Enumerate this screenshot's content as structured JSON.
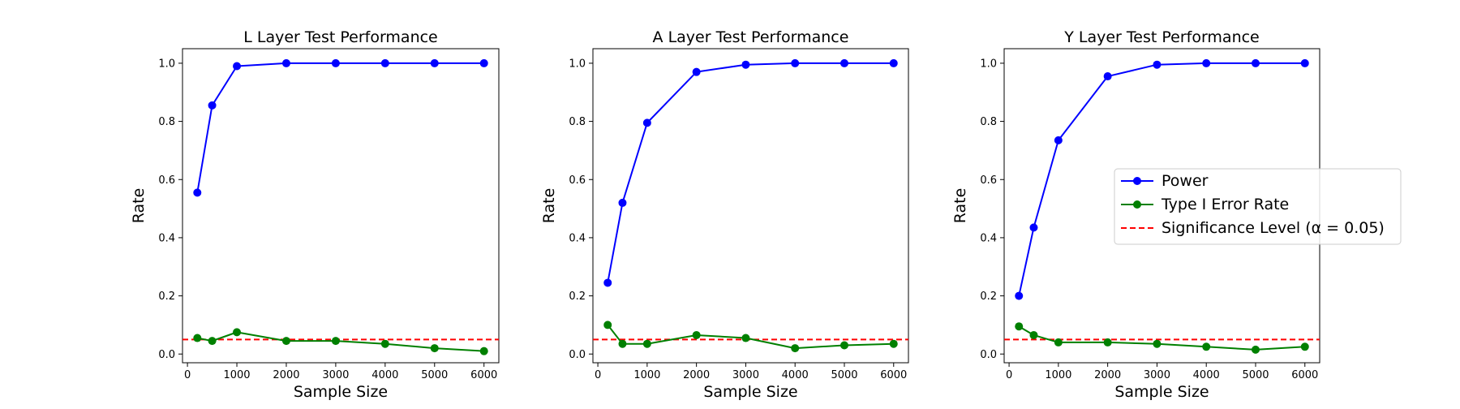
{
  "chart_data": [
    {
      "type": "line",
      "title": "L Layer Test Performance",
      "xlabel": "Sample Size",
      "ylabel": "Rate",
      "x": [
        200,
        500,
        1000,
        2000,
        3000,
        4000,
        5000,
        6000
      ],
      "xticks": [
        "0",
        "1000",
        "2000",
        "3000",
        "4000",
        "5000",
        "6000"
      ],
      "yticks": [
        "0.0",
        "0.2",
        "0.4",
        "0.6",
        "0.8",
        "1.0"
      ],
      "xlim": [
        -100,
        6300
      ],
      "ylim": [
        -0.03,
        1.05
      ],
      "series": [
        {
          "name": "Power",
          "color": "#0000ff",
          "values": [
            0.555,
            0.855,
            0.99,
            1.0,
            1.0,
            1.0,
            1.0,
            1.0
          ]
        },
        {
          "name": "Type I Error Rate",
          "color": "#008000",
          "values": [
            0.055,
            0.045,
            0.075,
            0.045,
            0.045,
            0.035,
            0.02,
            0.01
          ]
        }
      ],
      "hline": {
        "name": "Significance Level (α = 0.05)",
        "value": 0.05,
        "color": "#ff0000",
        "style": "dashed"
      },
      "grid": false
    },
    {
      "type": "line",
      "title": "A Layer Test Performance",
      "xlabel": "Sample Size",
      "ylabel": "Rate",
      "x": [
        200,
        500,
        1000,
        2000,
        3000,
        4000,
        5000,
        6000
      ],
      "xticks": [
        "0",
        "1000",
        "2000",
        "3000",
        "4000",
        "5000",
        "6000"
      ],
      "yticks": [
        "0.0",
        "0.2",
        "0.4",
        "0.6",
        "0.8",
        "1.0"
      ],
      "xlim": [
        -100,
        6300
      ],
      "ylim": [
        -0.03,
        1.05
      ],
      "series": [
        {
          "name": "Power",
          "color": "#0000ff",
          "values": [
            0.245,
            0.52,
            0.795,
            0.97,
            0.995,
            1.0,
            1.0,
            1.0
          ]
        },
        {
          "name": "Type I Error Rate",
          "color": "#008000",
          "values": [
            0.1,
            0.035,
            0.035,
            0.065,
            0.055,
            0.02,
            0.03,
            0.035
          ]
        }
      ],
      "hline": {
        "name": "Significance Level (α = 0.05)",
        "value": 0.05,
        "color": "#ff0000",
        "style": "dashed"
      },
      "grid": false
    },
    {
      "type": "line",
      "title": "Y Layer Test Performance",
      "xlabel": "Sample Size",
      "ylabel": "Rate",
      "x": [
        200,
        500,
        1000,
        2000,
        3000,
        4000,
        5000,
        6000
      ],
      "xticks": [
        "0",
        "1000",
        "2000",
        "3000",
        "4000",
        "5000",
        "6000"
      ],
      "yticks": [
        "0.0",
        "0.2",
        "0.4",
        "0.6",
        "0.8",
        "1.0"
      ],
      "xlim": [
        -100,
        6300
      ],
      "ylim": [
        -0.03,
        1.05
      ],
      "series": [
        {
          "name": "Power",
          "color": "#0000ff",
          "values": [
            0.2,
            0.435,
            0.735,
            0.955,
            0.995,
            1.0,
            1.0,
            1.0
          ]
        },
        {
          "name": "Type I Error Rate",
          "color": "#008000",
          "values": [
            0.095,
            0.065,
            0.04,
            0.04,
            0.035,
            0.025,
            0.015,
            0.025
          ]
        }
      ],
      "hline": {
        "name": "Significance Level (α = 0.05)",
        "value": 0.05,
        "color": "#ff0000",
        "style": "dashed"
      },
      "grid": false,
      "legend": {
        "placement": "center-right",
        "entries": [
          "Power",
          "Type I Error Rate",
          "Significance Level (α = 0.05)"
        ]
      }
    }
  ]
}
